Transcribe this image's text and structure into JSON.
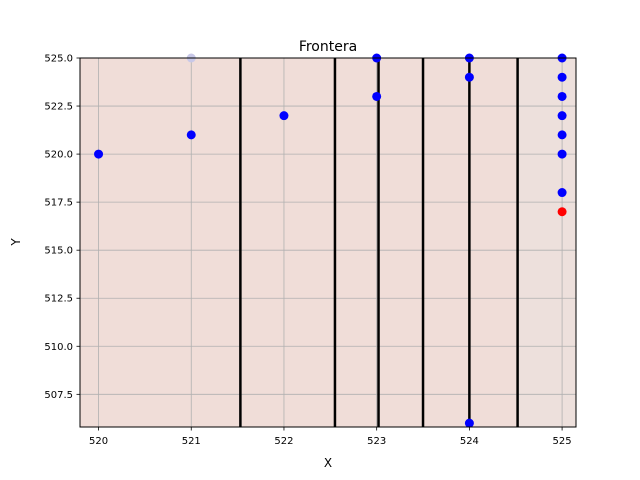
{
  "chart_data": {
    "type": "scatter",
    "title": "Frontera",
    "xlabel": "X",
    "ylabel": "Y",
    "xlim": [
      519.8,
      525.15
    ],
    "ylim": [
      505.8,
      525.0
    ],
    "grid": true,
    "x_ticks": [
      "520",
      "521",
      "522",
      "523",
      "524",
      "525"
    ],
    "y_ticks": [
      "507.5",
      "510.0",
      "512.5",
      "515.0",
      "517.5",
      "520.0",
      "522.5",
      "525.0"
    ],
    "background_regions": [
      {
        "x0": 519.8,
        "x1": 524.52,
        "color": "#f0ddd8"
      },
      {
        "x0": 524.52,
        "x1": 525.15,
        "color": "#ede0dc"
      }
    ],
    "boundary_lines_x": [
      521.53,
      522.55,
      523.02,
      523.5,
      524.0,
      524.52
    ],
    "series": [
      {
        "color": "#0000ff",
        "points": [
          [
            520,
            520
          ],
          [
            521,
            521
          ],
          [
            522,
            522
          ],
          [
            523,
            525
          ],
          [
            523,
            523
          ],
          [
            524,
            525
          ],
          [
            524,
            524
          ],
          [
            524,
            506
          ],
          [
            525,
            525
          ],
          [
            525,
            524
          ],
          [
            525,
            523
          ],
          [
            525,
            522
          ],
          [
            525,
            521
          ],
          [
            525,
            520
          ],
          [
            525,
            518
          ]
        ]
      },
      {
        "color": "#ff0000",
        "points": [
          [
            525,
            517
          ]
        ]
      },
      {
        "color": "#c8c8e8",
        "points": [
          [
            521,
            525
          ]
        ]
      }
    ]
  }
}
